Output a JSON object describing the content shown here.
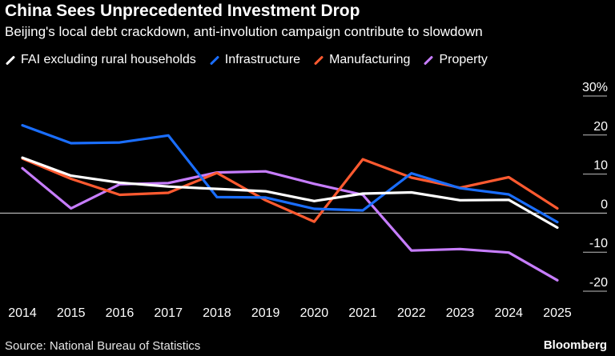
{
  "header": {
    "title": "China Sees Unprecedented Investment Drop",
    "subtitle": "Beijing's local debt crackdown, anti-involution campaign contribute to slowdown"
  },
  "footer": {
    "source": "Source: National Bureau of Statistics",
    "brand": "Bloomberg"
  },
  "chart_data": {
    "type": "line",
    "title": "China Sees Unprecedented Investment Drop",
    "subtitle": "Beijing's local debt crackdown, anti-involution campaign contribute to slowdown",
    "xlabel": "",
    "ylabel": "",
    "x": [
      "2014",
      "2015",
      "2016",
      "2017",
      "2018",
      "2019",
      "2020",
      "2021",
      "2022",
      "2023",
      "2024",
      "2025"
    ],
    "ylim": [
      -20,
      30
    ],
    "yticks": [
      30,
      20,
      10,
      0,
      -10,
      -20
    ],
    "ytick_labels": [
      "30%",
      "20",
      "10",
      "0",
      "-10",
      "-20"
    ],
    "legend_position": "top-left",
    "series": [
      {
        "name": "FAI excluding rural households",
        "color": "#ffffff",
        "values": [
          14.2,
          9.6,
          7.8,
          6.8,
          6.2,
          5.6,
          3.1,
          5.0,
          5.3,
          3.3,
          3.4,
          -3.7
        ]
      },
      {
        "name": "Infrastructure",
        "color": "#1a6eff",
        "values": [
          22.5,
          17.9,
          18.1,
          19.9,
          4.1,
          4.0,
          1.1,
          0.7,
          10.2,
          6.4,
          4.8,
          -2.3
        ]
      },
      {
        "name": "Manufacturing",
        "color": "#ff5a30",
        "values": [
          14.0,
          8.8,
          4.7,
          5.2,
          10.3,
          3.3,
          -2.2,
          13.8,
          9.1,
          6.5,
          9.2,
          1.2
        ]
      },
      {
        "name": "Property",
        "color": "#c77dff",
        "values": [
          11.5,
          1.2,
          7.4,
          7.7,
          10.4,
          10.7,
          7.5,
          4.7,
          -9.6,
          -9.2,
          -10.1,
          -17.2
        ]
      }
    ]
  }
}
